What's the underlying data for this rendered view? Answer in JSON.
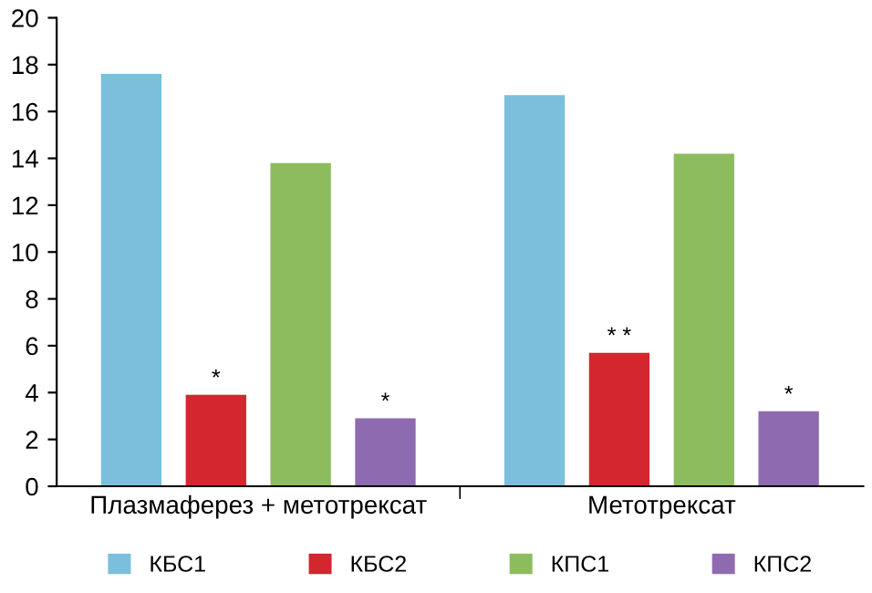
{
  "chart_data": {
    "type": "bar",
    "categories": [
      "Плазмаферез + метотрексат",
      "Метотрексат"
    ],
    "series": [
      {
        "name": "КБС1",
        "color": "#7bbfdc",
        "values": [
          17.6,
          16.7
        ]
      },
      {
        "name": "КБС2",
        "color": "#d3262f",
        "values": [
          3.9,
          5.7
        ]
      },
      {
        "name": "КПС1",
        "color": "#8cbc5e",
        "values": [
          13.8,
          14.2
        ]
      },
      {
        "name": "КПС2",
        "color": "#8e6bb0",
        "values": [
          2.9,
          3.2
        ]
      }
    ],
    "annotations": [
      "*",
      "*",
      "* *",
      "*"
    ],
    "ylim": [
      0,
      20
    ],
    "yticks": [
      0,
      2,
      4,
      6,
      8,
      10,
      12,
      14,
      16,
      18,
      20
    ],
    "grid": false,
    "legend": "bottom"
  }
}
